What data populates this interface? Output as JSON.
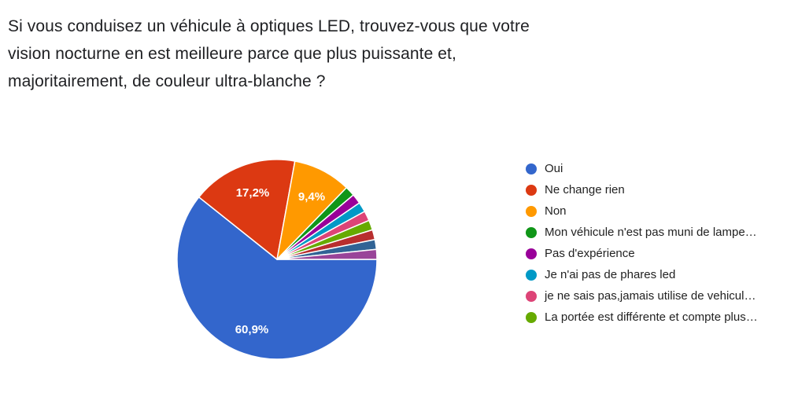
{
  "title_lines": [
    "Si vous conduisez un véhicule à optiques LED, trouvez-vous que votre",
    "vision nocturne en est meilleure parce que plus puissante et,",
    "majoritairement, de couleur ultra-blanche ?"
  ],
  "legend": [
    {
      "label": "Oui",
      "color": "#3366cc"
    },
    {
      "label": "Ne change rien",
      "color": "#dc3912"
    },
    {
      "label": "Non",
      "color": "#ff9900"
    },
    {
      "label": "Mon véhicule n'est pas muni de lampe…",
      "color": "#109618"
    },
    {
      "label": "Pas d'expérience",
      "color": "#990099"
    },
    {
      "label": "Je n'ai pas de phares led",
      "color": "#0099c6"
    },
    {
      "label": "je ne sais pas,jamais utilise de vehicul…",
      "color": "#dd4477"
    },
    {
      "label": "La portée est différente et compte plus…",
      "color": "#66aa00"
    }
  ],
  "slice_labels": {
    "oui": "60,9%",
    "ne_change_rien": "17,2%",
    "non": "9,4%"
  },
  "chart_data": {
    "type": "pie",
    "title": "Si vous conduisez un véhicule à optiques LED, trouvez-vous que votre vision nocturne en est meilleure parce que plus puissante et, majoritairement, de couleur ultra-blanche ?",
    "categories": [
      "Oui",
      "Ne change rien",
      "Non",
      "Mon véhicule n'est pas muni de lampe…",
      "Pas d'expérience",
      "Je n'ai pas de phares led",
      "je ne sais pas,jamais utilise de vehicul…",
      "La portée est différente et compte plus…",
      "(unlisted)",
      "(unlisted)",
      "(unlisted)"
    ],
    "values": [
      60.9,
      17.2,
      9.4,
      1.6,
      1.6,
      1.6,
      1.6,
      1.6,
      1.6,
      1.6,
      1.6
    ],
    "colors": [
      "#3366cc",
      "#dc3912",
      "#ff9900",
      "#109618",
      "#990099",
      "#0099c6",
      "#dd4477",
      "#66aa00",
      "#b82e2e",
      "#316395",
      "#994499"
    ],
    "data_labels": [
      "60,9%",
      "17,2%",
      "9,4%"
    ],
    "legend_position": "right",
    "unit": "%"
  }
}
